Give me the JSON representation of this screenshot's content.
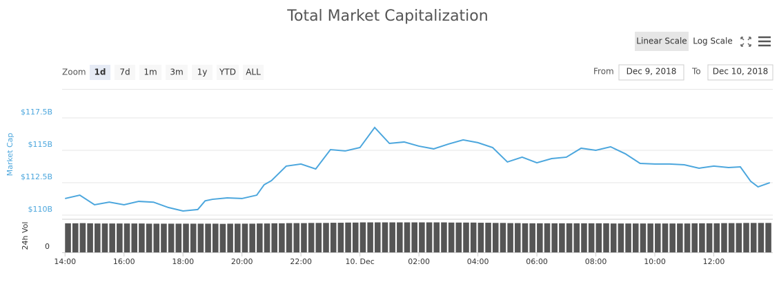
{
  "controls": {
    "scale_buttons": [
      "Linear Scale",
      "Log Scale"
    ],
    "zoom_label": "Zoom",
    "zoom_buttons": [
      "1d",
      "7d",
      "1m",
      "3m",
      "1y",
      "YTD",
      "ALL"
    ],
    "from_label": "From",
    "from": "Dec 9, 2018",
    "to_label": "To",
    "to": "Dec 10, 2018"
  },
  "chart_data": [
    {
      "type": "line",
      "title": "Total Market Capitalization",
      "ylabel": "Market Cap",
      "color": "#4ba6dd",
      "x": [
        14,
        14.5,
        15,
        15.5,
        16,
        16.5,
        17,
        17.5,
        18,
        18.5,
        18.75,
        19,
        19.5,
        20,
        20.5,
        20.75,
        21,
        21.5,
        22,
        22.5,
        23,
        23.5,
        24,
        24.5,
        25,
        25.5,
        26,
        26.5,
        27,
        27.5,
        28,
        28.5,
        29,
        29.5,
        30,
        30.5,
        31,
        31.5,
        32,
        32.5,
        33,
        33.5,
        34,
        34.5,
        35,
        35.5,
        36,
        36.5,
        36.9,
        37.25,
        37.5,
        37.9
      ],
      "values": [
        111.28,
        111.54,
        110.8,
        111.0,
        110.8,
        111.06,
        111.0,
        110.59,
        110.32,
        110.43,
        111.1,
        111.22,
        111.33,
        111.28,
        111.54,
        112.34,
        112.66,
        113.78,
        113.94,
        113.56,
        115.05,
        114.95,
        115.21,
        116.76,
        115.53,
        115.64,
        115.32,
        115.11,
        115.48,
        115.8,
        115.59,
        115.21,
        114.1,
        114.47,
        114.04,
        114.36,
        114.47,
        115.16,
        115.0,
        115.27,
        114.73,
        113.99,
        113.94,
        113.94,
        113.88,
        113.62,
        113.78,
        113.67,
        113.72,
        112.61,
        112.18,
        112.5
      ],
      "xlim": [
        13.9,
        38.0
      ],
      "xticks": [
        {
          "value": 14,
          "label": "14:00"
        },
        {
          "value": 16,
          "label": "16:00"
        },
        {
          "value": 18,
          "label": "18:00"
        },
        {
          "value": 20,
          "label": "20:00"
        },
        {
          "value": 22,
          "label": "22:00"
        },
        {
          "value": 24,
          "label": "10. Dec"
        },
        {
          "value": 26,
          "label": "02:00"
        },
        {
          "value": 28,
          "label": "04:00"
        },
        {
          "value": 30,
          "label": "06:00"
        },
        {
          "value": 32,
          "label": "08:00"
        },
        {
          "value": 34,
          "label": "10:00"
        },
        {
          "value": 36,
          "label": "12:00"
        }
      ],
      "ylim": [
        110,
        119.7
      ],
      "yticks": [
        {
          "value": 110,
          "label": "$110B"
        },
        {
          "value": 112.5,
          "label": "$112.5B"
        },
        {
          "value": 115,
          "label": "$115B"
        },
        {
          "value": 117.5,
          "label": "$117.5B"
        }
      ],
      "grid": true
    },
    {
      "type": "bar",
      "ylabel": "24h Vol",
      "color": "#555555",
      "x": [
        14,
        14.25,
        14.5,
        14.75,
        15,
        15.25,
        15.5,
        15.75,
        16,
        16.25,
        16.5,
        16.75,
        17,
        17.25,
        17.5,
        17.75,
        18,
        18.25,
        18.5,
        18.75,
        19,
        19.25,
        19.5,
        19.75,
        20,
        20.25,
        20.5,
        20.75,
        21,
        21.25,
        21.5,
        21.75,
        22,
        22.25,
        22.5,
        22.75,
        23,
        23.25,
        23.5,
        23.75,
        24,
        24.25,
        24.5,
        24.75,
        25,
        25.25,
        25.5,
        25.75,
        26,
        26.25,
        26.5,
        26.75,
        27,
        27.25,
        27.5,
        27.75,
        28,
        28.25,
        28.5,
        28.75,
        29,
        29.25,
        29.5,
        29.75,
        30,
        30.25,
        30.5,
        30.75,
        31,
        31.25,
        31.5,
        31.75,
        32,
        32.25,
        32.5,
        32.75,
        33,
        33.25,
        33.5,
        33.75,
        34,
        34.25,
        34.5,
        34.75,
        35,
        35.25,
        35.5,
        35.75,
        36,
        36.25,
        36.5,
        36.75,
        37,
        37.25,
        37.5,
        37.75
      ],
      "values": [
        15.8,
        15.8,
        15.9,
        15.8,
        15.7,
        15.7,
        15.7,
        15.7,
        15.7,
        15.7,
        15.7,
        15.6,
        15.6,
        15.6,
        15.6,
        15.6,
        15.6,
        15.6,
        15.6,
        15.6,
        15.6,
        15.5,
        15.6,
        15.6,
        15.6,
        15.6,
        15.7,
        15.7,
        15.8,
        15.8,
        15.9,
        15.9,
        15.9,
        16.0,
        16.0,
        16.0,
        16.1,
        16.1,
        16.2,
        16.2,
        16.3,
        16.3,
        16.3,
        16.3,
        16.3,
        16.3,
        16.3,
        16.3,
        16.3,
        16.3,
        16.3,
        16.3,
        16.2,
        16.2,
        16.2,
        16.2,
        16.1,
        16.1,
        16.0,
        16.0,
        15.9,
        15.9,
        15.8,
        15.8,
        15.8,
        15.8,
        15.8,
        15.8,
        15.8,
        15.8,
        15.8,
        15.8,
        15.8,
        15.8,
        15.7,
        15.7,
        15.7,
        15.7,
        15.7,
        15.7,
        15.7,
        15.7,
        15.7,
        15.7,
        15.7,
        15.8,
        15.8,
        15.8,
        15.8,
        15.9,
        15.9,
        15.9,
        16.0,
        16.0,
        16.0,
        16.0
      ],
      "xlim": [
        13.9,
        38.0
      ],
      "ylim": [
        0,
        18
      ],
      "yticks": [
        0
      ]
    }
  ]
}
